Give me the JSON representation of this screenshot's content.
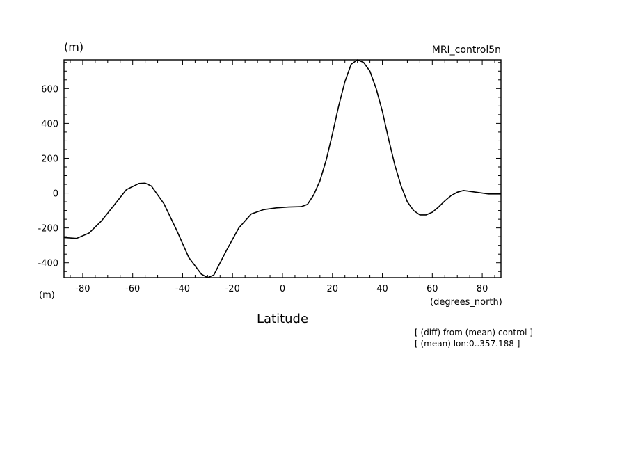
{
  "chart_data": {
    "type": "line",
    "title_right": "MRI_control5n",
    "y_unit_top": "(m)",
    "y_unit_bottom": "(m)",
    "x_unit": "(degrees_north)",
    "xlabel": "Latitude",
    "notes": [
      "[ (diff) from (mean) control ]",
      "[ (mean) lon:0..357.188 ]"
    ],
    "xlim": [
      -87.5,
      87.5
    ],
    "ylim": [
      -485,
      765
    ],
    "x_ticks": [
      -80,
      -60,
      -40,
      -20,
      0,
      20,
      40,
      60,
      80
    ],
    "x_tick_labels": [
      "-80",
      "-60",
      "-40",
      "-20",
      "0",
      "20",
      "40",
      "60",
      "80"
    ],
    "y_ticks": [
      -400,
      -200,
      0,
      200,
      400,
      600
    ],
    "y_tick_labels": [
      "-400",
      "-200",
      "0",
      "200",
      "400",
      "600"
    ],
    "grid": false,
    "series": [
      {
        "x": [
          -87.5,
          -82.5,
          -77.5,
          -72.5,
          -67.5,
          -62.5,
          -57.5,
          -55,
          -52.5,
          -47.5,
          -42.5,
          -37.5,
          -32.5,
          -30,
          -27.5,
          -22.5,
          -17.5,
          -12.5,
          -7.5,
          -2.5,
          2.5,
          7.5,
          10,
          12.5,
          15,
          17.5,
          20,
          22.5,
          25,
          27.5,
          30,
          32.5,
          35,
          37.5,
          40,
          42.5,
          45,
          47.5,
          50,
          52.5,
          55,
          57.5,
          60,
          62.5,
          65,
          67.5,
          70,
          72.5,
          75,
          77.5,
          80,
          82.5,
          85,
          87.5
        ],
        "y": [
          -255,
          -260,
          -230,
          -160,
          -70,
          20,
          55,
          57,
          40,
          -60,
          -210,
          -370,
          -465,
          -485,
          -470,
          -330,
          -200,
          -120,
          -95,
          -85,
          -80,
          -78,
          -65,
          -10,
          70,
          190,
          340,
          500,
          640,
          740,
          765,
          750,
          700,
          600,
          470,
          310,
          160,
          40,
          -50,
          -100,
          -125,
          -125,
          -110,
          -80,
          -45,
          -15,
          5,
          15,
          10,
          5,
          0,
          -5,
          -5,
          -5
        ]
      }
    ]
  }
}
